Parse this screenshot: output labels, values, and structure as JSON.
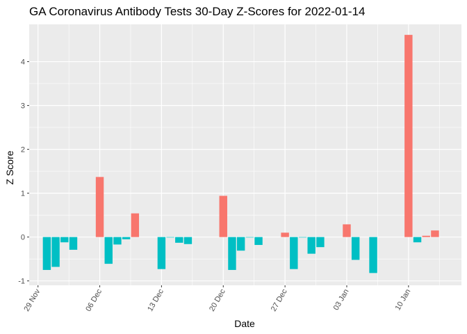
{
  "chart_data": {
    "type": "bar",
    "title": "GA Coronavirus Antibody Tests 30-Day Z-Scores for 2022-01-14",
    "xlabel": "Date",
    "ylabel": "Z Score",
    "x_ticks": [
      {
        "date": "2021-11-29",
        "label": "29 Nov"
      },
      {
        "date": "2021-12-06",
        "label": "06 Dec"
      },
      {
        "date": "2021-12-13",
        "label": "13 Dec"
      },
      {
        "date": "2021-12-20",
        "label": "20 Dec"
      },
      {
        "date": "2021-12-27",
        "label": "27 Dec"
      },
      {
        "date": "2022-01-03",
        "label": "03 Jan"
      },
      {
        "date": "2022-01-10",
        "label": "10 Jan"
      }
    ],
    "y_ticks": [
      -1,
      0,
      1,
      2,
      3,
      4
    ],
    "xlim": [
      "2021-11-28",
      "2022-01-16"
    ],
    "ylim": [
      -1.1,
      4.85
    ],
    "grid": true,
    "legend": "none",
    "colors": {
      "positive": "#F8766D",
      "negative": "#00BFC4",
      "panel": "#EBEBEB",
      "grid": "#FFFFFF"
    },
    "series": [
      {
        "values": [
          {
            "date": "2021-11-29",
            "z": null
          },
          {
            "date": "2021-11-30",
            "z": -0.75
          },
          {
            "date": "2021-12-01",
            "z": -0.68
          },
          {
            "date": "2021-12-02",
            "z": -0.12
          },
          {
            "date": "2021-12-03",
            "z": -0.29
          },
          {
            "date": "2021-12-06",
            "z": 1.37
          },
          {
            "date": "2021-12-07",
            "z": -0.61
          },
          {
            "date": "2021-12-08",
            "z": -0.17
          },
          {
            "date": "2021-12-09",
            "z": -0.05
          },
          {
            "date": "2021-12-10",
            "z": 0.54
          },
          {
            "date": "2021-12-13",
            "z": -0.73
          },
          {
            "date": "2021-12-14",
            "z": -0.01
          },
          {
            "date": "2021-12-15",
            "z": -0.13
          },
          {
            "date": "2021-12-16",
            "z": -0.16
          },
          {
            "date": "2021-12-20",
            "z": 0.94
          },
          {
            "date": "2021-12-21",
            "z": -0.75
          },
          {
            "date": "2021-12-22",
            "z": -0.31
          },
          {
            "date": "2021-12-23",
            "z": -0.01
          },
          {
            "date": "2021-12-24",
            "z": -0.18
          },
          {
            "date": "2021-12-27",
            "z": 0.1
          },
          {
            "date": "2021-12-28",
            "z": -0.73
          },
          {
            "date": "2021-12-29",
            "z": -0.01
          },
          {
            "date": "2021-12-30",
            "z": -0.38
          },
          {
            "date": "2021-12-31",
            "z": -0.23
          },
          {
            "date": "2022-01-03",
            "z": 0.29
          },
          {
            "date": "2022-01-04",
            "z": -0.52
          },
          {
            "date": "2022-01-06",
            "z": -0.82
          },
          {
            "date": "2022-01-10",
            "z": 4.61
          },
          {
            "date": "2022-01-11",
            "z": -0.12
          },
          {
            "date": "2022-01-12",
            "z": 0.03
          },
          {
            "date": "2022-01-13",
            "z": 0.15
          }
        ]
      }
    ]
  }
}
